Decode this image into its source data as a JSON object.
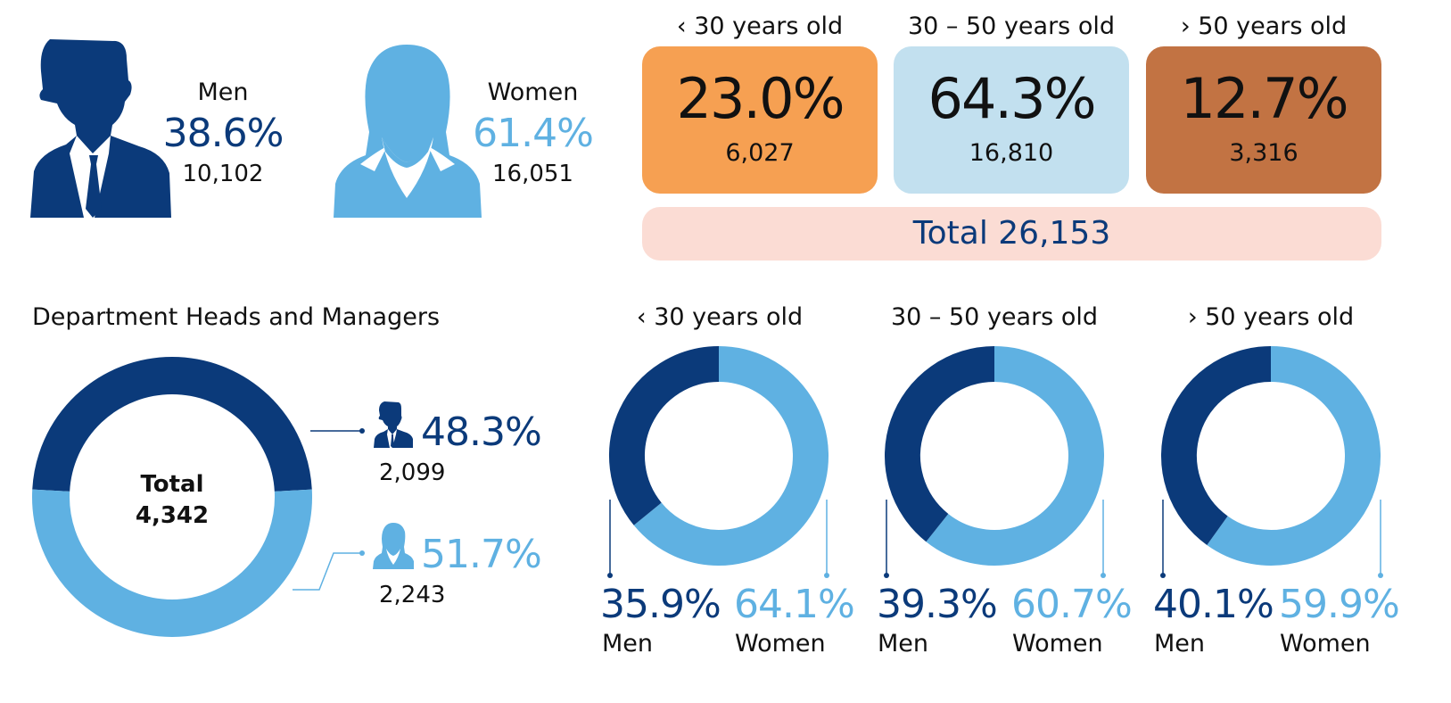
{
  "colors": {
    "men": "#0b3a7a",
    "women": "#5fb1e2",
    "young": "#f6a052",
    "mid": "#c2e0ef",
    "old": "#c27343",
    "total_bg": "#fbdcd4"
  },
  "icons": {
    "men": "man-silhouette-icon",
    "women": "woman-silhouette-icon"
  },
  "chart_data": [
    {
      "type": "table",
      "series": [
        {
          "name": "Men",
          "label": "Men",
          "percent": "38.6%",
          "count": "10,102",
          "value": 10102
        },
        {
          "name": "Women",
          "label": "Women",
          "percent": "61.4%",
          "count": "16,051",
          "value": 16051
        }
      ]
    },
    {
      "type": "table",
      "categories": [
        "‹ 30 years old",
        "30 – 50 years old",
        "› 50 years old"
      ],
      "percents": [
        "23.0%",
        "64.3%",
        "12.7%"
      ],
      "counts": [
        "6,027",
        "16,810",
        "3,316"
      ],
      "values": [
        6027,
        16810,
        3316
      ],
      "total": "Total 26,153"
    },
    {
      "type": "pie",
      "title": "Department Heads and Managers",
      "center_lines": [
        "Total",
        "4,342"
      ],
      "series": [
        {
          "name": "Men",
          "percent": "48.3%",
          "count": "2,099",
          "value": 48.3
        },
        {
          "name": "Women",
          "percent": "51.7%",
          "count": "2,243",
          "value": 51.7
        }
      ]
    },
    {
      "type": "pie",
      "title": "‹ 30 years old",
      "series": [
        {
          "name": "Men",
          "label": "Men",
          "percent": "35.9%",
          "value": 35.9
        },
        {
          "name": "Women",
          "label": "Women",
          "percent": "64.1%",
          "value": 64.1
        }
      ]
    },
    {
      "type": "pie",
      "title": "30 – 50 years old",
      "series": [
        {
          "name": "Men",
          "label": "Men",
          "percent": "39.3%",
          "value": 39.3
        },
        {
          "name": "Women",
          "label": "Women",
          "percent": "60.7%",
          "value": 60.7
        }
      ]
    },
    {
      "type": "pie",
      "title": "› 50 years old",
      "series": [
        {
          "name": "Men",
          "label": "Men",
          "percent": "40.1%",
          "value": 40.1
        },
        {
          "name": "Women",
          "label": "Women",
          "percent": "59.9%",
          "value": 59.9
        }
      ]
    }
  ]
}
